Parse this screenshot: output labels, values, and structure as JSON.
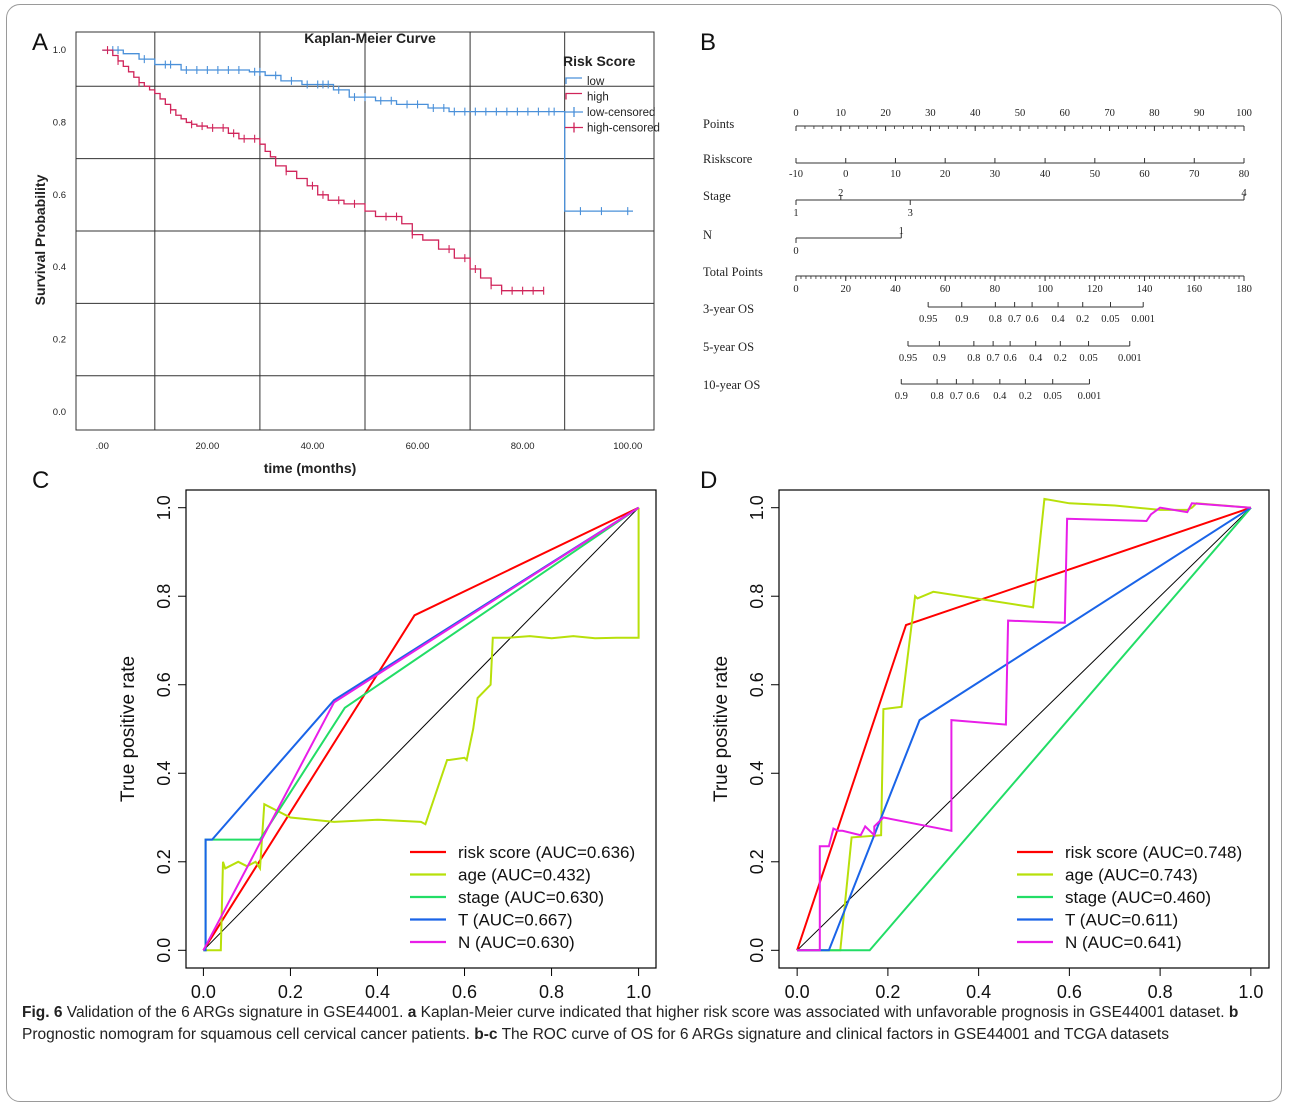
{
  "panel_labels": [
    "A",
    "B",
    "C",
    "D"
  ],
  "caption": {
    "fig_label": "Fig. 6",
    "text_1": " Validation of the 6 ARGs signature in GSE44001. ",
    "a_label": "a",
    "a_text": " Kaplan-Meier curve indicated that higher risk score was associated with unfavorable prognosis in GSE44001 dataset. ",
    "b_label": "b",
    "b_text": " Prognostic nomogram for squamous cell cervical cancer patients. ",
    "bc_label": "b-c",
    "bc_text": " The ROC curve of OS for 6 ARGs signature and clinical factors in GSE44001 and TCGA datasets"
  },
  "colors": {
    "low": "#4a90d9",
    "high": "#d0245a",
    "risk": "#ff0000",
    "age": "#b8e00a",
    "stage": "#22dd66",
    "T": "#1a64e8",
    "N": "#e81ee8",
    "diag": "#000000"
  },
  "chart_data": [
    {
      "type": "line",
      "title": "Kaplan-Meier Curve",
      "xlabel": "time (months)",
      "ylabel": "Survival Probability",
      "xlim": [
        -5,
        105
      ],
      "ylim": [
        -0.05,
        1.05
      ],
      "xticks": [
        ".00",
        "20.00",
        "40.00",
        "60.00",
        "80.00",
        "100.00"
      ],
      "xtick_values": [
        0,
        20,
        40,
        60,
        80,
        100
      ],
      "yticks": [
        "0.0",
        "0.2",
        "0.4",
        "0.6",
        "0.8",
        "1.0"
      ],
      "ytick_values": [
        0,
        0.2,
        0.4,
        0.6,
        0.8,
        1.0
      ],
      "hgrid": [
        0.1,
        0.3,
        0.5,
        0.7,
        0.9
      ],
      "vgrid": [
        10,
        30,
        50,
        70,
        88
      ],
      "legend_title": "Risk Score",
      "legend_position": "top-right",
      "legend": [
        "low",
        "high",
        "low-censored",
        "high-censored"
      ],
      "series": [
        {
          "name": "low",
          "color_key": "low",
          "x": [
            0,
            4,
            7,
            10,
            15,
            28,
            31,
            34,
            38,
            44,
            47,
            52,
            56,
            62,
            66,
            88,
            101
          ],
          "y": [
            1.0,
            0.99,
            0.975,
            0.96,
            0.945,
            0.94,
            0.93,
            0.915,
            0.905,
            0.89,
            0.87,
            0.86,
            0.85,
            0.84,
            0.83,
            0.555,
            0.555
          ],
          "censored_x": [
            2,
            3,
            8,
            12,
            13,
            16,
            18,
            20,
            22,
            24,
            26,
            29,
            30,
            33,
            36,
            39,
            41,
            42,
            43,
            45,
            48,
            50,
            53,
            55,
            58,
            60,
            63,
            65,
            67,
            69,
            71,
            73,
            75,
            77,
            79,
            81,
            83,
            85,
            86,
            91,
            95,
            100
          ]
        },
        {
          "name": "high",
          "color_key": "high",
          "x": [
            0,
            2,
            3,
            4,
            5,
            6,
            7,
            8,
            9,
            10,
            11,
            12,
            13,
            14,
            15,
            16,
            17,
            18,
            20,
            24,
            26,
            30,
            31,
            32,
            33,
            35,
            37,
            39,
            41,
            43,
            46,
            50,
            52,
            57,
            59,
            61,
            64,
            67,
            70,
            72,
            74,
            76,
            84
          ],
          "y": [
            1.0,
            0.985,
            0.97,
            0.955,
            0.94,
            0.925,
            0.91,
            0.9,
            0.89,
            0.88,
            0.865,
            0.85,
            0.835,
            0.82,
            0.81,
            0.8,
            0.795,
            0.79,
            0.785,
            0.77,
            0.755,
            0.74,
            0.72,
            0.705,
            0.68,
            0.665,
            0.645,
            0.625,
            0.6,
            0.585,
            0.575,
            0.555,
            0.54,
            0.52,
            0.49,
            0.475,
            0.45,
            0.425,
            0.395,
            0.37,
            0.35,
            0.335,
            0.335
          ],
          "censored_x": [
            1,
            3,
            7,
            13,
            17,
            19,
            21,
            23,
            25,
            27,
            29,
            35,
            40,
            42,
            45,
            48,
            54,
            56,
            59,
            66,
            69,
            71,
            74,
            76,
            78,
            80,
            82,
            84
          ]
        }
      ]
    },
    {
      "type": "table",
      "title": "",
      "rows": [
        {
          "label": "Points",
          "ticks": [
            "0",
            "10",
            "20",
            "30",
            "40",
            "50",
            "60",
            "70",
            "80",
            "90",
            "100"
          ],
          "tick_values": [
            0,
            10,
            20,
            30,
            40,
            50,
            60,
            70,
            80,
            90,
            100
          ],
          "axis_from": 0,
          "axis_to": 100,
          "minor": true
        },
        {
          "label": "Riskscore",
          "ticks": [
            "-10",
            "0",
            "10",
            "20",
            "30",
            "40",
            "50",
            "60",
            "70",
            "80"
          ],
          "tick_values": [
            0,
            11.1,
            22.2,
            33.3,
            44.4,
            55.6,
            66.7,
            77.8,
            88.9,
            100
          ],
          "axis_from": 0,
          "axis_to": 100
        },
        {
          "label": "Stage",
          "ticks_above": [
            "2",
            "4"
          ],
          "above_values": [
            10,
            100
          ],
          "ticks_below": [
            "1",
            "3"
          ],
          "below_values": [
            0,
            25.5
          ],
          "axis_from": 0,
          "axis_to": 100
        },
        {
          "label": "N",
          "ticks_above": [
            "1"
          ],
          "above_values": [
            23.5
          ],
          "ticks_below": [
            "0"
          ],
          "below_values": [
            0
          ],
          "axis_from": 0,
          "axis_to": 23.5
        },
        {
          "label": "Total Points",
          "ticks": [
            "0",
            "20",
            "40",
            "60",
            "80",
            "100",
            "120",
            "140",
            "160",
            "180"
          ],
          "tick_values": [
            0,
            11.1,
            22.2,
            33.3,
            44.4,
            55.6,
            66.7,
            77.8,
            88.9,
            100
          ],
          "axis_from": 0,
          "axis_to": 100,
          "minor": true
        },
        {
          "label": "3-year OS",
          "ticks": [
            "0.95",
            "0.9",
            "0.8",
            "0.7",
            "0.6",
            "0.4",
            "0.2",
            "0.05",
            "0.001"
          ],
          "tick_values": [
            29.5,
            37,
            44.5,
            48.8,
            52.7,
            58.5,
            64,
            70.2,
            77.5
          ],
          "axis_from": 29.5,
          "axis_to": 77.5
        },
        {
          "label": "5-year OS",
          "ticks": [
            "0.95",
            "0.9",
            "0.8",
            "0.7",
            "0.6",
            "0.4",
            "0.2",
            "0.05",
            "0.001"
          ],
          "tick_values": [
            25,
            32,
            39.7,
            44,
            47.8,
            53.5,
            59,
            65.3,
            74.5
          ],
          "axis_from": 25,
          "axis_to": 74.5
        },
        {
          "label": "10-year OS",
          "ticks": [
            "0.9",
            "0.8",
            "0.7",
            "0.6",
            "0.4",
            "0.2",
            "0.05",
            "0.001"
          ],
          "tick_values": [
            23.5,
            31.5,
            35.8,
            39.5,
            45.5,
            51.2,
            57.3,
            65.5
          ],
          "axis_from": 23.5,
          "axis_to": 65.5
        }
      ]
    },
    {
      "type": "line",
      "title": "",
      "ylabel": "True positive rate",
      "xlabel": "",
      "xlim": [
        -0.04,
        1.04
      ],
      "ylim": [
        -0.04,
        1.04
      ],
      "ticks": [
        "0.0",
        "0.2",
        "0.4",
        "0.6",
        "0.8",
        "1.0"
      ],
      "tick_values": [
        0,
        0.2,
        0.4,
        0.6,
        0.8,
        1.0
      ],
      "legend_position": "bottom-right",
      "series": [
        {
          "name": "risk score (AUC=0.636)",
          "color_key": "risk",
          "x": [
            0,
            0.485,
            1.0
          ],
          "y": [
            0,
            0.757,
            1.0
          ]
        },
        {
          "name": "age (AUC=0.432)",
          "color_key": "age",
          "x": [
            0,
            0.04,
            0.045,
            0.05,
            0.08,
            0.1,
            0.12,
            0.13,
            0.14,
            0.2,
            0.3,
            0.4,
            0.5,
            0.51,
            0.56,
            0.565,
            0.6,
            0.605,
            0.62,
            0.63,
            0.66,
            0.665,
            0.7,
            0.75,
            0.8,
            0.85,
            0.9,
            0.95,
            1.0,
            1.0
          ],
          "y": [
            0,
            0,
            0.2,
            0.185,
            0.2,
            0.19,
            0.2,
            0.185,
            0.33,
            0.3,
            0.29,
            0.295,
            0.29,
            0.285,
            0.43,
            0.43,
            0.435,
            0.43,
            0.5,
            0.57,
            0.6,
            0.706,
            0.706,
            0.71,
            0.705,
            0.71,
            0.705,
            0.706,
            0.706,
            1.0
          ]
        },
        {
          "name": "stage (AUC=0.630)",
          "color_key": "stage",
          "x": [
            0,
            0.005,
            0.005,
            0.13,
            0.325,
            1.0
          ],
          "y": [
            0,
            0,
            0.25,
            0.25,
            0.548,
            1.0
          ]
        },
        {
          "name": "T (AUC=0.667)",
          "color_key": "T",
          "x": [
            0,
            0.005,
            0.005,
            0.02,
            0.3,
            1.0
          ],
          "y": [
            0,
            0,
            0.25,
            0.25,
            0.565,
            1.0
          ]
        },
        {
          "name": "N (AUC=0.630)",
          "color_key": "N",
          "x": [
            0,
            0.3,
            1.0
          ],
          "y": [
            0,
            0.56,
            1.0
          ]
        }
      ]
    },
    {
      "type": "line",
      "title": "",
      "ylabel": "True positive rate",
      "xlabel": "",
      "xlim": [
        -0.04,
        1.04
      ],
      "ylim": [
        -0.04,
        1.04
      ],
      "ticks": [
        "0.0",
        "0.2",
        "0.4",
        "0.6",
        "0.8",
        "1.0"
      ],
      "tick_values": [
        0,
        0.2,
        0.4,
        0.6,
        0.8,
        1.0
      ],
      "legend_position": "bottom-right",
      "series": [
        {
          "name": "risk score (AUC=0.748)",
          "color_key": "risk",
          "x": [
            0,
            0.24,
            1.0
          ],
          "y": [
            0,
            0.735,
            1.0
          ]
        },
        {
          "name": "age (AUC=0.743)",
          "color_key": "age",
          "x": [
            0,
            0.095,
            0.12,
            0.12,
            0.185,
            0.19,
            0.19,
            0.23,
            0.26,
            0.265,
            0.3,
            0.52,
            0.545,
            0.6,
            0.7,
            0.8,
            0.86,
            0.87,
            0.88,
            1.0
          ],
          "y": [
            0,
            0,
            0.255,
            0.255,
            0.26,
            0.545,
            0.545,
            0.55,
            0.8,
            0.795,
            0.81,
            0.775,
            1.02,
            1.01,
            1.005,
            0.995,
            0.995,
            1.0,
            1.01,
            1.0
          ]
        },
        {
          "name": "stage (AUC=0.460)",
          "color_key": "stage",
          "x": [
            0,
            0.16,
            1.0
          ],
          "y": [
            0,
            0,
            1.0
          ]
        },
        {
          "name": "T (AUC=0.611)",
          "color_key": "T",
          "x": [
            0,
            0.07,
            0.27,
            1.0
          ],
          "y": [
            0,
            0,
            0.52,
            1.0
          ]
        },
        {
          "name": "N (AUC=0.641)",
          "color_key": "N",
          "x": [
            0,
            0.05,
            0.05,
            0.07,
            0.08,
            0.09,
            0.1,
            0.14,
            0.15,
            0.17,
            0.17,
            0.19,
            0.34,
            0.34,
            0.46,
            0.465,
            0.59,
            0.595,
            0.77,
            0.78,
            0.8,
            0.86,
            0.87,
            1.0
          ],
          "y": [
            0,
            0,
            0.235,
            0.235,
            0.275,
            0.27,
            0.27,
            0.26,
            0.28,
            0.26,
            0.28,
            0.3,
            0.27,
            0.52,
            0.51,
            0.745,
            0.74,
            0.975,
            0.97,
            0.985,
            1.0,
            0.99,
            1.01,
            1.0
          ]
        }
      ]
    }
  ]
}
